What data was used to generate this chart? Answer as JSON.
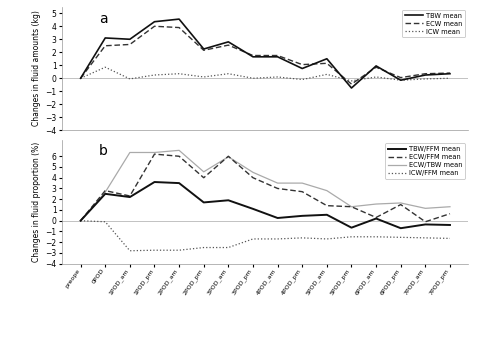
{
  "x_labels": [
    "preope",
    "0POD",
    "1POD_am",
    "1POD_pm",
    "2POD_am",
    "2POD_pm",
    "3POD_am",
    "3POD_pm",
    "4POD_am",
    "4POD_pm",
    "5POD_am",
    "5POD_pm",
    "6POD_am",
    "6POD_pm",
    "7POD_am",
    "7POD_pm"
  ],
  "panel_a": {
    "TBW_mean": [
      0,
      3.1,
      3.0,
      4.35,
      4.55,
      2.25,
      2.8,
      1.65,
      1.65,
      0.75,
      1.5,
      -0.75,
      0.95,
      -0.15,
      0.25,
      0.35
    ],
    "ECW_mean": [
      0,
      2.5,
      2.6,
      4.0,
      3.9,
      2.15,
      2.55,
      1.75,
      1.75,
      1.05,
      1.15,
      -0.45,
      0.85,
      0.05,
      0.35,
      0.4
    ],
    "ICW_mean": [
      0,
      0.85,
      -0.05,
      0.25,
      0.35,
      0.1,
      0.35,
      0.0,
      0.1,
      -0.1,
      0.3,
      -0.2,
      0.1,
      -0.15,
      -0.05,
      0.0
    ]
  },
  "panel_b": {
    "TBW_FFM_mean": [
      0,
      2.5,
      2.2,
      3.6,
      3.5,
      1.7,
      1.9,
      1.1,
      0.25,
      0.45,
      0.55,
      -0.65,
      0.2,
      -0.7,
      -0.35,
      -0.4
    ],
    "ECW_FFM_mean": [
      0,
      2.8,
      2.3,
      6.2,
      6.0,
      4.0,
      6.0,
      4.0,
      3.0,
      2.7,
      1.4,
      1.3,
      0.3,
      1.5,
      -0.1,
      0.65
    ],
    "ICW_FFM_mean": [
      0,
      -0.1,
      -2.8,
      -2.75,
      -2.75,
      -2.5,
      -2.5,
      -1.7,
      -1.7,
      -1.6,
      -1.7,
      -1.5,
      -1.5,
      -1.55,
      -1.6,
      -1.65
    ],
    "ECW_TBW_mean": [
      0,
      2.65,
      6.35,
      6.35,
      6.55,
      4.55,
      5.95,
      4.5,
      3.5,
      3.5,
      2.8,
      1.3,
      1.55,
      1.65,
      1.15,
      1.3
    ]
  },
  "ylim_a": [
    -4,
    5.5
  ],
  "ylim_b": [
    -4,
    7.5
  ],
  "yticks_a": [
    -4,
    -3,
    -2,
    -1,
    0,
    1,
    2,
    3,
    4,
    5
  ],
  "yticks_b": [
    -4,
    -3,
    -2,
    -1,
    0,
    1,
    2,
    3,
    4,
    5,
    6
  ],
  "ylabel_a": "Changes in fluid amounts (kg)",
  "ylabel_b": "Changes in fluid proportion (%)",
  "legend_a": [
    "TBW mean",
    "ECW mean",
    "ICW mean"
  ],
  "legend_b": [
    "TBW/FFM mean",
    "ECW/FFM mean",
    "ICW/FFM mean",
    "ECW/TBW mean"
  ],
  "label_a": "a",
  "label_b": "b",
  "lw_solid": 1.2,
  "lw_dashed": 1.0,
  "lw_dotted": 0.9,
  "lw_light": 0.9
}
